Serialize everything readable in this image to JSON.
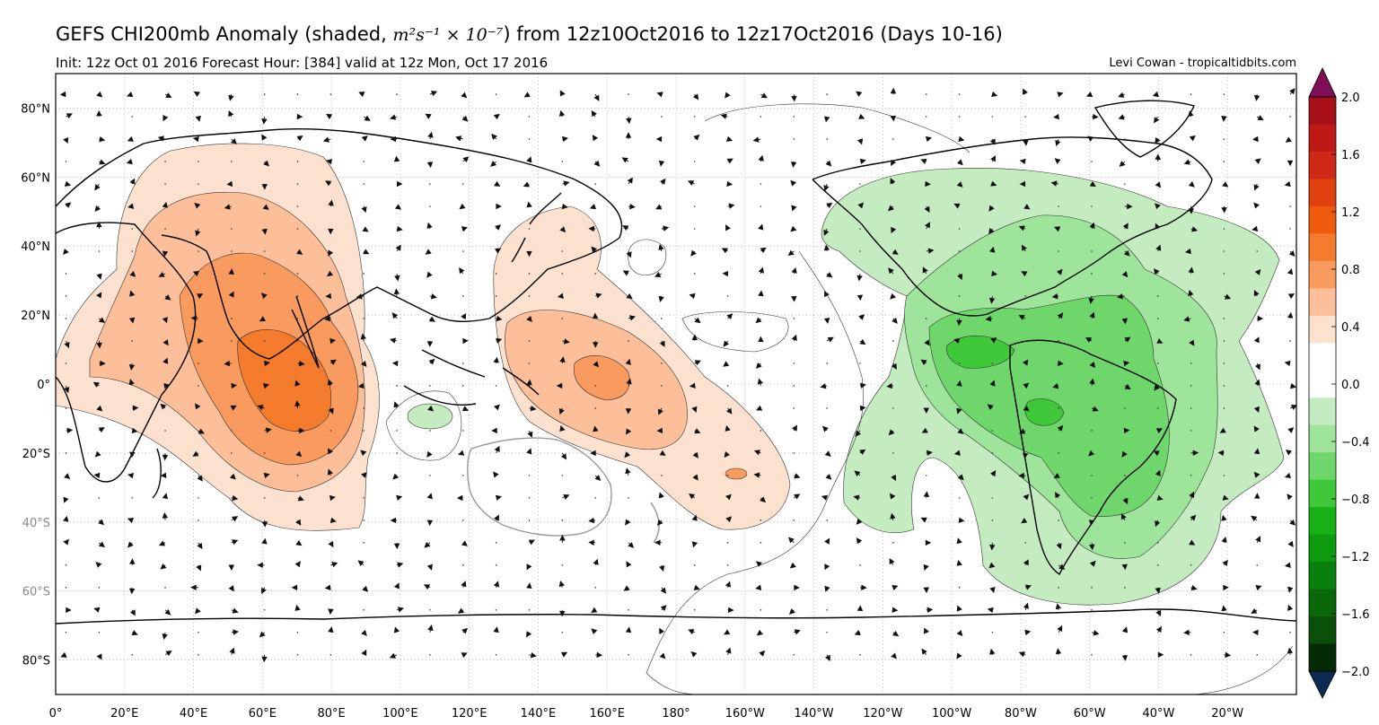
{
  "header": {
    "title_pre": "GEFS CHI200mb Anomaly (shaded,",
    "title_units": "m²s⁻¹ × 10⁻⁷",
    "title_post": ") from 12z10Oct2016 to 12z17Oct2016 (Days 10-16)",
    "subtitle": "Init: 12z Oct 01 2016 Forecast Hour: [384] valid at 12z Mon, Oct 17 2016",
    "credit": "Levi Cowan - tropicaltidbits.com"
  },
  "map": {
    "lat_labels": [
      "80°N",
      "60°N",
      "40°N",
      "20°N",
      "0°",
      "20°S",
      "40°S",
      "60°S",
      "80°S"
    ],
    "lon_labels": [
      "0°",
      "20°E",
      "40°E",
      "60°E",
      "80°E",
      "100°E",
      "120°E",
      "140°E",
      "160°E",
      "180°",
      "160°W",
      "140°W",
      "120°W",
      "100°W",
      "80°W",
      "60°W",
      "40°W",
      "20°W"
    ],
    "anomaly_regions": [
      {
        "name": "indian-ocean-positive-anomaly",
        "sign": "positive",
        "peak": 0.8
      },
      {
        "name": "west-pacific-positive-anomaly",
        "sign": "positive",
        "peak": 0.8
      },
      {
        "name": "americas-negative-anomaly",
        "sign": "negative",
        "peak": -0.8
      },
      {
        "name": "indonesia-negative-anomaly",
        "sign": "negative",
        "peak": -0.4
      }
    ]
  },
  "colorbar": {
    "labels": [
      "2.0",
      "1.6",
      "1.2",
      "0.8",
      "0.4",
      "0.0",
      "−0.4",
      "−0.8",
      "−1.2",
      "−1.6",
      "−2.0"
    ],
    "colors": [
      "#a50f15",
      "#bd1a17",
      "#cf2915",
      "#e0400d",
      "#f05a0c",
      "#f47a2c",
      "#f99a5e",
      "#fcbf99",
      "#fde1cf",
      "#ffffff",
      "#ffffff",
      "#c4ecc0",
      "#9ee49b",
      "#6fd66b",
      "#3ec83a",
      "#17b116",
      "#0c9a0e",
      "#0a800c",
      "#0a670a",
      "#0a4f0a",
      "#052b05"
    ],
    "top_arrow_color": "#800f57",
    "bottom_arrow_color": "#0a2b4f"
  }
}
